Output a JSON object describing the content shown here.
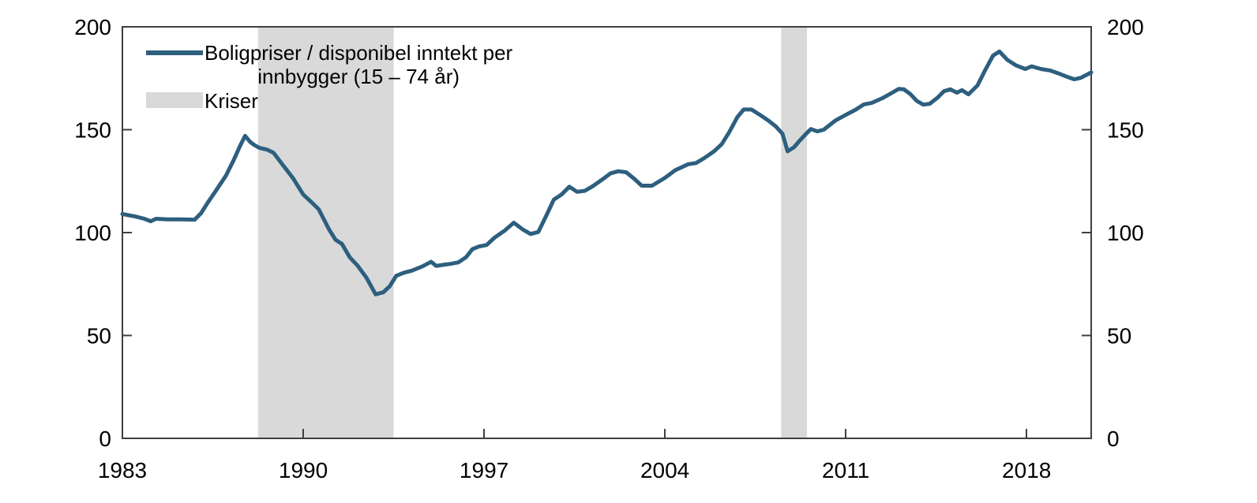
{
  "chart_data": {
    "type": "line",
    "title": "",
    "xlabel": "",
    "ylabel": "",
    "xlim": [
      1983,
      2020.5
    ],
    "ylim": [
      0,
      200
    ],
    "x_ticks": [
      1983,
      1990,
      1997,
      2004,
      2011,
      2018
    ],
    "y_ticks": [
      0,
      50,
      100,
      150,
      200
    ],
    "grid": false,
    "legend_position": "top-left",
    "axis_color": "#3f3f3f",
    "band_color": "#d9d9d9",
    "legend": {
      "series_label_line1": "Boligpriser / disponibel inntekt per",
      "series_label_line2": "innbygger (15 – 74 år)",
      "kriser_label": "Kriser"
    },
    "crisis_bands": [
      {
        "from": 1988.25,
        "to": 1993.5
      },
      {
        "from": 2008.5,
        "to": 2009.5
      }
    ],
    "series": [
      {
        "name": "Boligpriser / disponibel inntekt per innbygger (15 – 74 år)",
        "color": "#2d5f7e",
        "points": [
          [
            1983.0,
            109
          ],
          [
            1983.5,
            107.8
          ],
          [
            1983.85,
            106.7
          ],
          [
            1984.1,
            105.5
          ],
          [
            1984.3,
            106.7
          ],
          [
            1984.75,
            106.4
          ],
          [
            1985.25,
            106.4
          ],
          [
            1985.8,
            106.3
          ],
          [
            1986.05,
            109.5
          ],
          [
            1986.3,
            114.5
          ],
          [
            1986.6,
            120
          ],
          [
            1987.0,
            127.5
          ],
          [
            1987.3,
            135
          ],
          [
            1987.55,
            142
          ],
          [
            1987.75,
            147
          ],
          [
            1987.95,
            144
          ],
          [
            1988.1,
            142.6
          ],
          [
            1988.3,
            141.2
          ],
          [
            1988.6,
            140.3
          ],
          [
            1988.85,
            138.8
          ],
          [
            1989.2,
            133
          ],
          [
            1989.6,
            126.5
          ],
          [
            1990.0,
            118.5
          ],
          [
            1990.3,
            115
          ],
          [
            1990.6,
            111.3
          ],
          [
            1991.0,
            101.5
          ],
          [
            1991.25,
            96.5
          ],
          [
            1991.5,
            94.5
          ],
          [
            1991.8,
            88
          ],
          [
            1992.1,
            84
          ],
          [
            1992.45,
            78
          ],
          [
            1992.8,
            70
          ],
          [
            1993.1,
            71
          ],
          [
            1993.35,
            74
          ],
          [
            1993.6,
            79
          ],
          [
            1993.9,
            80.5
          ],
          [
            1994.2,
            81.5
          ],
          [
            1994.6,
            83.5
          ],
          [
            1994.95,
            85.8
          ],
          [
            1995.15,
            83.8
          ],
          [
            1995.4,
            84.3
          ],
          [
            1995.7,
            84.8
          ],
          [
            1996.0,
            85.5
          ],
          [
            1996.3,
            88
          ],
          [
            1996.55,
            92
          ],
          [
            1996.8,
            93.2
          ],
          [
            1997.1,
            94
          ],
          [
            1997.4,
            97.5
          ],
          [
            1997.8,
            101
          ],
          [
            1998.15,
            104.8
          ],
          [
            1998.5,
            101.5
          ],
          [
            1998.8,
            99.3
          ],
          [
            1999.1,
            100.3
          ],
          [
            1999.4,
            108
          ],
          [
            1999.7,
            116
          ],
          [
            2000.0,
            118.5
          ],
          [
            2000.3,
            122.3
          ],
          [
            2000.6,
            119.8
          ],
          [
            2000.9,
            120.3
          ],
          [
            2001.2,
            122.5
          ],
          [
            2001.6,
            126
          ],
          [
            2001.9,
            128.8
          ],
          [
            2002.2,
            129.8
          ],
          [
            2002.5,
            129.3
          ],
          [
            2002.8,
            126.3
          ],
          [
            2003.1,
            122.8
          ],
          [
            2003.5,
            122.8
          ],
          [
            2004.0,
            126.6
          ],
          [
            2004.4,
            130.3
          ],
          [
            2004.9,
            133.2
          ],
          [
            2005.2,
            133.8
          ],
          [
            2005.5,
            136
          ],
          [
            2005.9,
            139.5
          ],
          [
            2006.2,
            143
          ],
          [
            2006.5,
            149
          ],
          [
            2006.8,
            156
          ],
          [
            2007.05,
            159.8
          ],
          [
            2007.35,
            159.8
          ],
          [
            2007.7,
            157
          ],
          [
            2008.0,
            154.5
          ],
          [
            2008.3,
            151.5
          ],
          [
            2008.55,
            148
          ],
          [
            2008.75,
            139.5
          ],
          [
            2009.0,
            141.5
          ],
          [
            2009.2,
            144.5
          ],
          [
            2009.45,
            147.8
          ],
          [
            2009.65,
            150.3
          ],
          [
            2009.9,
            149.2
          ],
          [
            2010.15,
            150
          ],
          [
            2010.6,
            154.5
          ],
          [
            2011.0,
            157.2
          ],
          [
            2011.4,
            159.8
          ],
          [
            2011.7,
            162.3
          ],
          [
            2012.0,
            163
          ],
          [
            2012.45,
            165.5
          ],
          [
            2012.8,
            168
          ],
          [
            2013.05,
            169.8
          ],
          [
            2013.25,
            169.6
          ],
          [
            2013.5,
            167.3
          ],
          [
            2013.75,
            164
          ],
          [
            2014.0,
            162.2
          ],
          [
            2014.25,
            162.6
          ],
          [
            2014.55,
            165.5
          ],
          [
            2014.8,
            168.7
          ],
          [
            2015.05,
            169.6
          ],
          [
            2015.3,
            168
          ],
          [
            2015.5,
            169.2
          ],
          [
            2015.75,
            167.2
          ],
          [
            2016.1,
            171.5
          ],
          [
            2016.4,
            179
          ],
          [
            2016.7,
            186
          ],
          [
            2016.95,
            188
          ],
          [
            2017.25,
            184
          ],
          [
            2017.6,
            181.2
          ],
          [
            2017.95,
            179.5
          ],
          [
            2018.2,
            180.8
          ],
          [
            2018.55,
            179.5
          ],
          [
            2018.9,
            178.8
          ],
          [
            2019.2,
            177.5
          ],
          [
            2019.5,
            176
          ],
          [
            2019.85,
            174.5
          ],
          [
            2020.1,
            175.2
          ],
          [
            2020.5,
            177.8
          ]
        ]
      }
    ]
  }
}
